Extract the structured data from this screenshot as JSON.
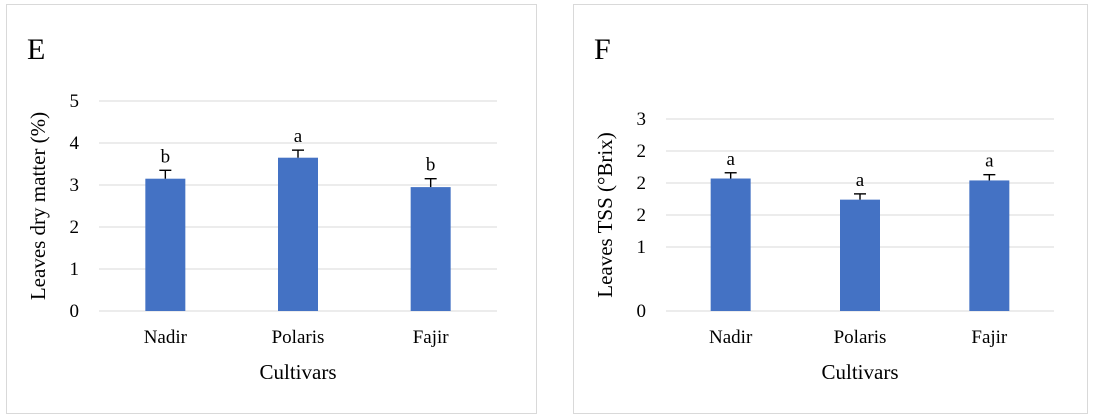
{
  "chart_data": [
    {
      "panel_label": "E",
      "type": "bar",
      "categories": [
        "Nadir",
        "Polaris",
        "Fajir"
      ],
      "values": [
        3.15,
        3.65,
        2.95
      ],
      "errors": [
        0.2,
        0.18,
        0.2
      ],
      "significance": [
        "b",
        "a",
        "b"
      ],
      "xlabel": "Cultivars",
      "ylabel": "Leaves dry matter  (%)",
      "ylim": [
        0,
        5
      ],
      "yticks": [
        "0",
        "1",
        "2",
        "3",
        "4",
        "5"
      ],
      "grid": true,
      "bar_color": "#4472c4"
    },
    {
      "panel_label": "F",
      "type": "bar",
      "categories": [
        "Nadir",
        "Polaris",
        "Fajir"
      ],
      "values": [
        2.07,
        1.74,
        2.04
      ],
      "errors": [
        0.09,
        0.09,
        0.09
      ],
      "significance": [
        "a",
        "a",
        "a"
      ],
      "xlabel": "Cultivars",
      "ylabel": "Leaves TSS  (°Brix)",
      "ylim": [
        0,
        3
      ],
      "yticks": [
        "0",
        "1",
        "2",
        "2",
        "2",
        "3"
      ],
      "ytick_positions": [
        0,
        1,
        1.5,
        2,
        2.5,
        3
      ],
      "grid": true,
      "bar_color": "#4472c4"
    }
  ]
}
